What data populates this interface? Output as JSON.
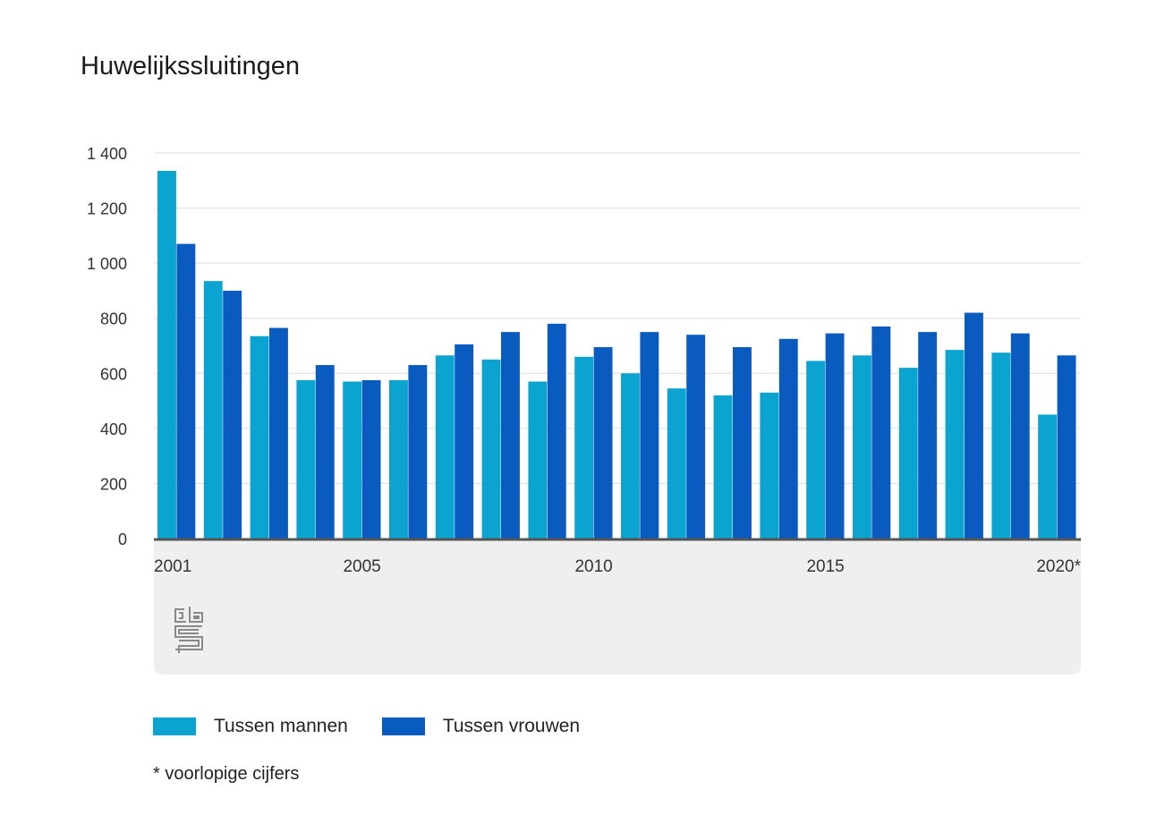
{
  "title": "Huwelijkssluitingen",
  "footnote": "* voorlopige cijfers",
  "logo_icon": "cbs-logo-icon",
  "colors": {
    "men": "#0ba3d0",
    "women": "#0a5bbf",
    "axis": "#555555",
    "grid": "#dddddd",
    "footer_bg": "#efefef"
  },
  "chart_data": {
    "type": "bar",
    "categories": [
      "2001",
      "2002",
      "2003",
      "2004",
      "2005",
      "2006",
      "2007",
      "2008",
      "2009",
      "2010",
      "2011",
      "2012",
      "2013",
      "2014",
      "2015",
      "2016",
      "2017",
      "2018",
      "2019",
      "2020*"
    ],
    "tick_labels": [
      "2001",
      "2005",
      "2010",
      "2015",
      "2020*"
    ],
    "series": [
      {
        "name": "Tussen mannen",
        "values": [
          1335,
          935,
          735,
          575,
          570,
          575,
          665,
          650,
          570,
          660,
          600,
          545,
          520,
          530,
          645,
          665,
          620,
          685,
          675,
          450
        ]
      },
      {
        "name": "Tussen vrouwen",
        "values": [
          1070,
          900,
          765,
          630,
          575,
          630,
          705,
          750,
          780,
          695,
          750,
          740,
          695,
          725,
          745,
          770,
          750,
          820,
          745,
          665
        ]
      }
    ],
    "yticks": [
      "0",
      "200",
      "400",
      "600",
      "800",
      "1 000",
      "1 200",
      "1 400"
    ],
    "ylim": [
      0,
      1400
    ],
    "grid": true,
    "legend": "bottom-left"
  }
}
